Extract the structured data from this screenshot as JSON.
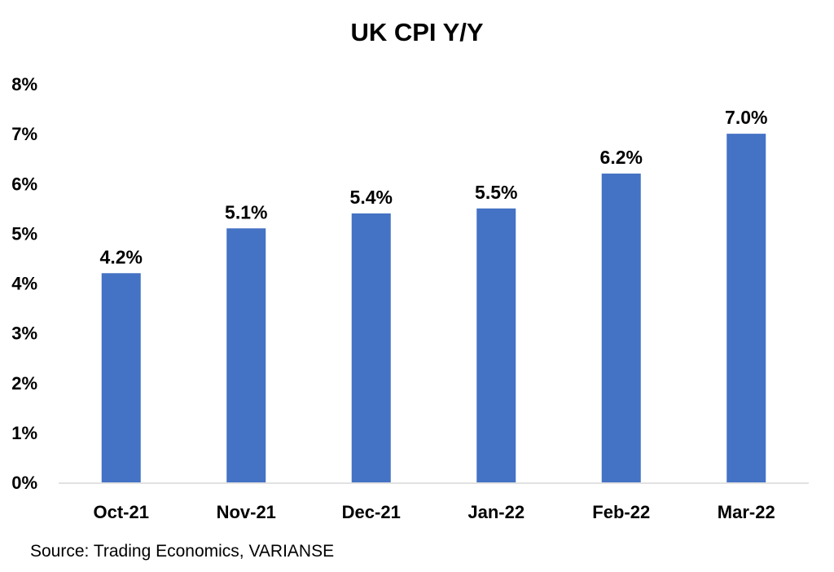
{
  "chart_data": {
    "type": "bar",
    "title": "UK CPI Y/Y",
    "categories": [
      "Oct-21",
      "Nov-21",
      "Dec-21",
      "Jan-22",
      "Feb-22",
      "Mar-22"
    ],
    "values": [
      4.2,
      5.1,
      5.4,
      5.5,
      6.2,
      7.0
    ],
    "data_labels": [
      "4.2%",
      "5.1%",
      "5.4%",
      "5.5%",
      "6.2%",
      "7.0%"
    ],
    "y_ticks": [
      "0%",
      "1%",
      "2%",
      "3%",
      "4%",
      "5%",
      "6%",
      "7%",
      "8%"
    ],
    "ylim": [
      0,
      8
    ],
    "xlabel": "",
    "ylabel": "",
    "grid": false,
    "legend": "none",
    "bar_color": "#4472C4"
  },
  "footer": {
    "source": "Source: Trading Economics, VARIANSE"
  }
}
